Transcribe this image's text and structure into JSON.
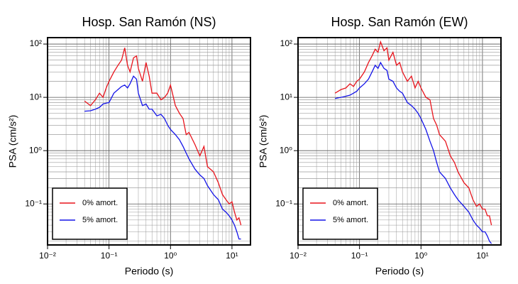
{
  "chart_data": [
    {
      "type": "line",
      "title": "Hosp. San Ramón (NS)",
      "x_label": "Periodo (s)",
      "y_label": "PSA (cm/s²)",
      "x_log": true,
      "y_log": true,
      "grid": true,
      "legend": "lower left",
      "xlim": [
        0.01,
        20
      ],
      "ylim": [
        0.017,
        132
      ],
      "xticks": [
        {
          "value": 0.01,
          "label": "10⁻²"
        },
        {
          "value": 0.1,
          "label": "10⁻¹"
        },
        {
          "value": 1,
          "label": "10⁰"
        },
        {
          "value": 10,
          "label": "10¹"
        }
      ],
      "yticks": [
        {
          "value": 0.1,
          "label": "10⁻¹"
        },
        {
          "value": 1,
          "label": "10⁰"
        },
        {
          "value": 10,
          "label": "10¹"
        },
        {
          "value": 100,
          "label": "10²"
        }
      ],
      "x": [
        0.04,
        0.05,
        0.06,
        0.07,
        0.08,
        0.09,
        0.1,
        0.12,
        0.14,
        0.16,
        0.18,
        0.2,
        0.22,
        0.25,
        0.28,
        0.3,
        0.35,
        0.4,
        0.45,
        0.5,
        0.6,
        0.7,
        0.8,
        0.9,
        1,
        1.2,
        1.4,
        1.6,
        1.8,
        2,
        2.5,
        3,
        3.5,
        4,
        5,
        6,
        7,
        8,
        9,
        10,
        11,
        12,
        13,
        14
      ],
      "series": [
        {
          "name": "0% amort.",
          "color": "#e8141c",
          "values": [
            8.5,
            7,
            9,
            12,
            10,
            15,
            20,
            30,
            40,
            50,
            85,
            40,
            30,
            55,
            60,
            35,
            20,
            45,
            25,
            12,
            12,
            9,
            10,
            12,
            17,
            7,
            5,
            4,
            2,
            2.2,
            1.3,
            0.8,
            1.2,
            0.5,
            0.4,
            0.25,
            0.15,
            0.12,
            0.1,
            0.11,
            0.07,
            0.05,
            0.055,
            0.04
          ]
        },
        {
          "name": "5% amort.",
          "color": "#1414e8",
          "values": [
            5.5,
            5.6,
            6,
            6.5,
            7.5,
            7.8,
            8,
            12,
            14,
            16,
            17,
            15,
            18,
            25,
            22,
            12,
            7,
            7.5,
            6,
            6,
            4.5,
            4.8,
            4,
            3,
            2.5,
            2,
            1.6,
            1.2,
            0.9,
            0.7,
            0.45,
            0.35,
            0.3,
            0.22,
            0.15,
            0.12,
            0.08,
            0.07,
            0.06,
            0.05,
            0.04,
            0.03,
            0.022,
            0.022
          ]
        }
      ]
    },
    {
      "type": "line",
      "title": "Hosp. San Ramón (EW)",
      "x_label": "Periodo (s)",
      "y_label": "PSA (cm/s²)",
      "x_log": true,
      "y_log": true,
      "grid": true,
      "legend": "lower left",
      "xlim": [
        0.01,
        20
      ],
      "ylim": [
        0.017,
        132
      ],
      "xticks": [
        {
          "value": 0.01,
          "label": "10⁻²"
        },
        {
          "value": 0.1,
          "label": "10⁻¹"
        },
        {
          "value": 1,
          "label": "10⁰"
        },
        {
          "value": 10,
          "label": "10¹"
        }
      ],
      "yticks": [
        {
          "value": 0.1,
          "label": "10⁻¹"
        },
        {
          "value": 1,
          "label": "10⁰"
        },
        {
          "value": 10,
          "label": "10¹"
        },
        {
          "value": 100,
          "label": "10²"
        }
      ],
      "x": [
        0.04,
        0.05,
        0.06,
        0.07,
        0.08,
        0.09,
        0.1,
        0.12,
        0.14,
        0.16,
        0.18,
        0.2,
        0.22,
        0.25,
        0.28,
        0.3,
        0.35,
        0.4,
        0.45,
        0.5,
        0.6,
        0.7,
        0.8,
        0.9,
        1,
        1.2,
        1.4,
        1.6,
        1.8,
        2,
        2.5,
        3,
        3.5,
        4,
        5,
        6,
        7,
        8,
        9,
        10,
        11,
        12,
        13,
        14
      ],
      "series": [
        {
          "name": "0% amort.",
          "color": "#e8141c",
          "values": [
            12,
            14,
            15,
            18,
            16,
            20,
            22,
            30,
            45,
            60,
            80,
            70,
            110,
            75,
            85,
            50,
            70,
            40,
            45,
            30,
            20,
            25,
            15,
            20,
            15,
            10,
            9,
            4,
            3,
            2,
            1.5,
            0.8,
            0.6,
            0.4,
            0.25,
            0.2,
            0.12,
            0.09,
            0.1,
            0.08,
            0.08,
            0.06,
            0.06,
            0.04
          ]
        },
        {
          "name": "5% amort.",
          "color": "#1414e8",
          "values": [
            9.5,
            10,
            10.5,
            11,
            12,
            13,
            15,
            18,
            22,
            30,
            40,
            35,
            45,
            35,
            32,
            22,
            20,
            15,
            13,
            12,
            8,
            7,
            6,
            5,
            4,
            2.5,
            1.5,
            1,
            0.6,
            0.4,
            0.3,
            0.2,
            0.15,
            0.12,
            0.09,
            0.07,
            0.05,
            0.04,
            0.035,
            0.03,
            0.03,
            0.025,
            0.02,
            0.018
          ]
        }
      ]
    }
  ]
}
